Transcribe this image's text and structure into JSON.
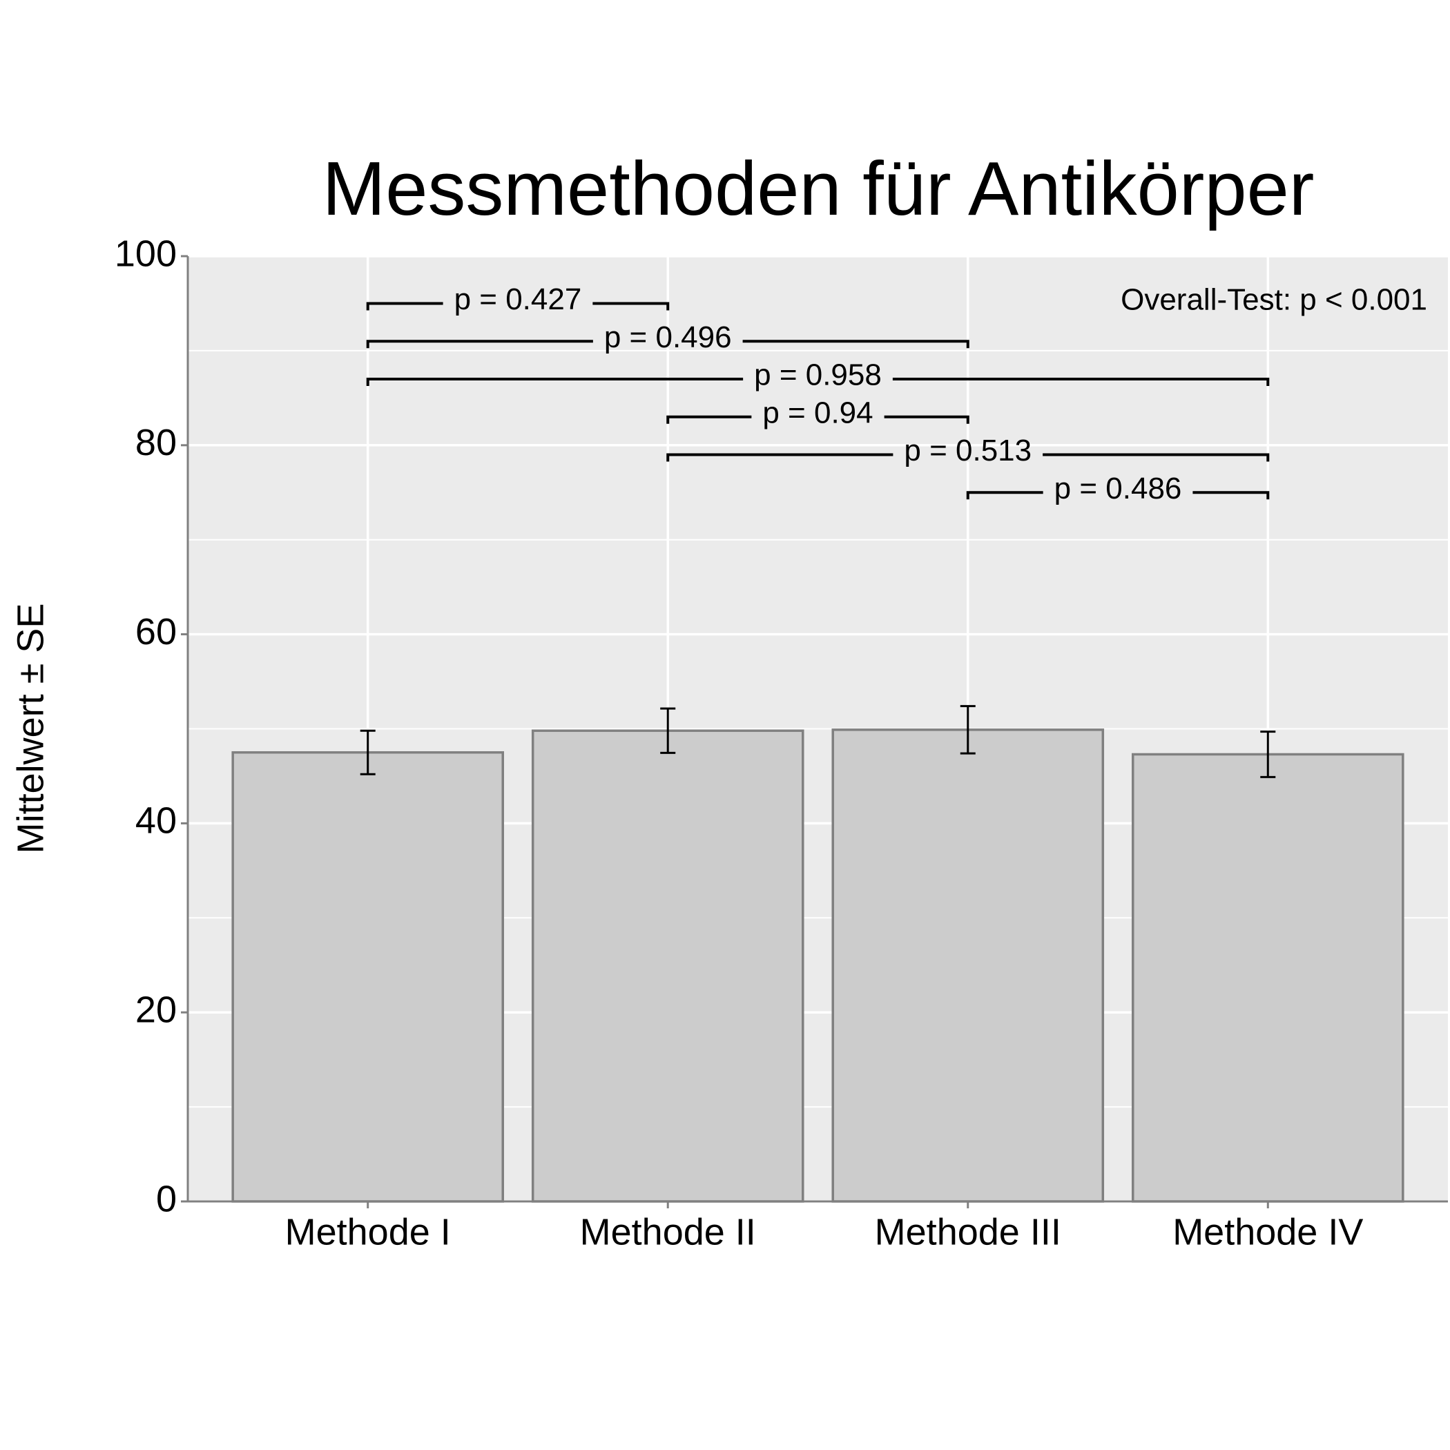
{
  "chart_data": {
    "type": "bar",
    "title": "Messmethoden für Antikörper",
    "ylabel": "Mittelwert ± SE",
    "categories": [
      "Methode I",
      "Methode II",
      "Methode III",
      "Methode IV"
    ],
    "values": [
      47.5,
      49.8,
      49.9,
      47.3
    ],
    "errors": [
      2.3,
      2.35,
      2.5,
      2.4
    ],
    "color": "#cccccc",
    "ylim": [
      0,
      100
    ],
    "yticks": [
      0,
      20,
      40,
      60,
      80,
      100
    ],
    "grid": true,
    "annotation": "Overall-Test: p < 0.001",
    "comparisons": [
      {
        "groups": [
          "Methode I",
          "Methode II"
        ],
        "label": "p = 0.427",
        "y": 95
      },
      {
        "groups": [
          "Methode I",
          "Methode III"
        ],
        "label": "p = 0.496",
        "y": 91
      },
      {
        "groups": [
          "Methode I",
          "Methode IV"
        ],
        "label": "p = 0.958",
        "y": 87
      },
      {
        "groups": [
          "Methode II",
          "Methode III"
        ],
        "label": "p = 0.94",
        "y": 83
      },
      {
        "groups": [
          "Methode II",
          "Methode IV"
        ],
        "label": "p = 0.513",
        "y": 79
      },
      {
        "groups": [
          "Methode III",
          "Methode IV"
        ],
        "label": "p = 0.486",
        "y": 75
      }
    ]
  }
}
